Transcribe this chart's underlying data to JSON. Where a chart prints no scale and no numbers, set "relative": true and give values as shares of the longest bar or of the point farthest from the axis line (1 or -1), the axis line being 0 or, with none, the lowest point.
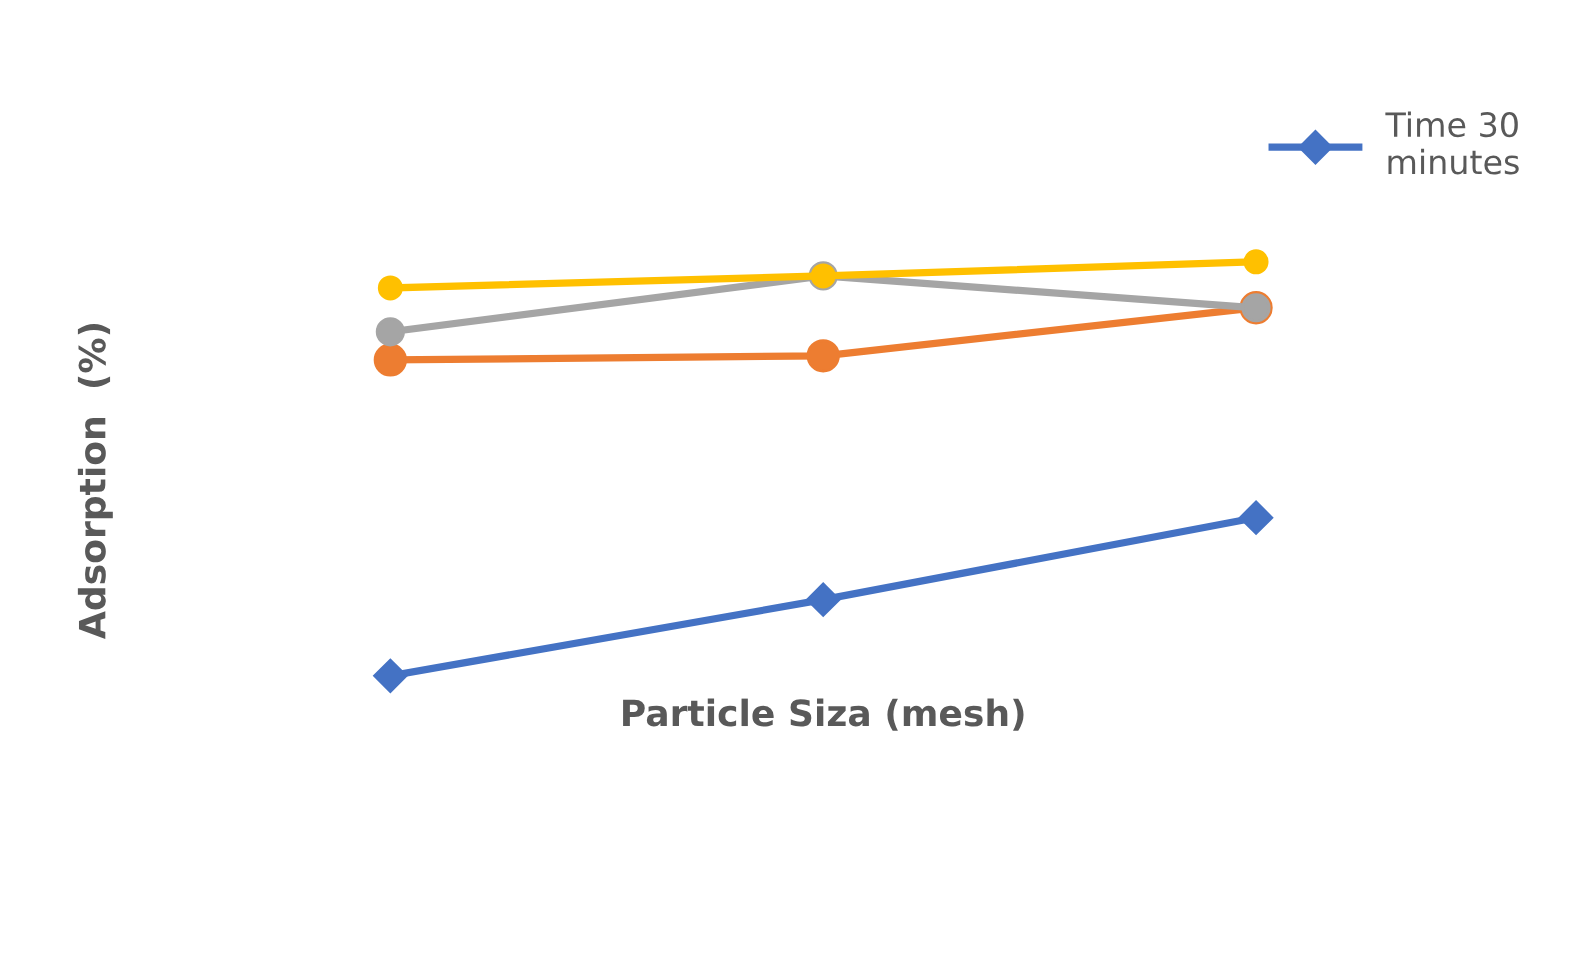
{
  "chart_data": {
    "type": "line",
    "relative": true,
    "xlabel": "Particle Siza (mesh)",
    "ylabel": "Adsorption  (%)",
    "categories": [
      null,
      null,
      null
    ],
    "legend": "top right",
    "grid": false,
    "series": [
      {
        "name": "Time 30\nminutes",
        "color": "#4472c4",
        "marker": "diamond",
        "values": [
          0,
          0.184,
          0.382
        ]
      },
      {
        "color": "#ed7d31",
        "marker": "circle",
        "values": [
          0.763,
          0.773,
          0.889
        ]
      },
      {
        "color": "#a5a5a5",
        "marker": "circle",
        "values": [
          0.831,
          0.966,
          0.889
        ]
      },
      {
        "color": "#ffc000",
        "marker": "circle",
        "values": [
          0.937,
          0.966,
          1
        ]
      }
    ]
  }
}
